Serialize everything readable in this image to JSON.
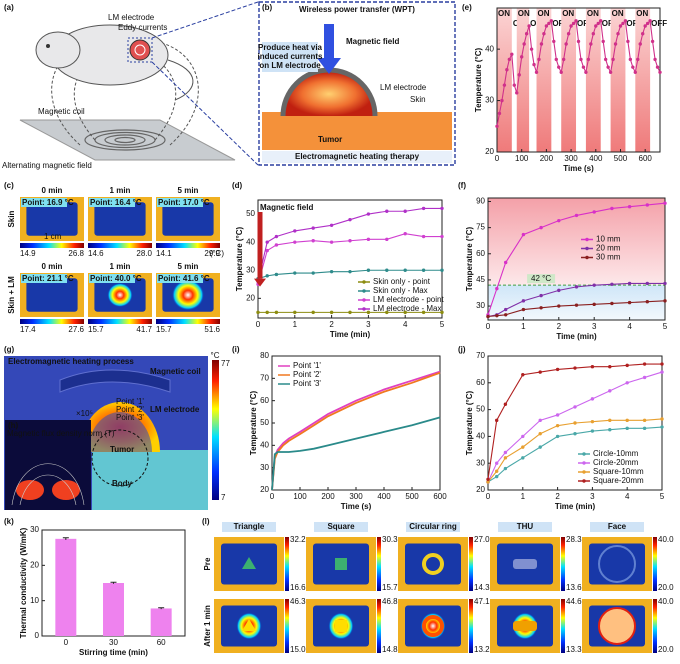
{
  "panel_labels": [
    "(a)",
    "(b)",
    "(c)",
    "(d)",
    "(e)",
    "(f)",
    "(g)",
    "(h)",
    "(i)",
    "(j)",
    "(k)",
    "(l)"
  ],
  "a": {
    "labels": [
      "LM electrode",
      "Eddy currents",
      "Magnetic coil",
      "Alternating magnetic field"
    ]
  },
  "b": {
    "title": "Wireless power transfer (WPT)",
    "heat_note": [
      "Produce heat via",
      "induced currents",
      "on LM electrode"
    ],
    "field": "Magnetic field",
    "electrode": "LM electrode",
    "skin": "Skin",
    "tumor": "Tumor",
    "caption": "Electromagnetic heating therapy"
  },
  "c": {
    "rows": [
      "Skin",
      "Skin + LM"
    ],
    "times": [
      "0 min",
      "1 min",
      "5 min"
    ],
    "points": [
      [
        "Point: 16.9 °C",
        "Point: 16.4 °C",
        "Point: 17.0 °C"
      ],
      [
        "Point: 21.1 °C",
        "Point: 40.0 °C",
        "Point: 41.6 °C"
      ]
    ],
    "scale": [
      [
        [
          "14.9",
          "26.8"
        ],
        [
          "14.6",
          "28.0"
        ],
        [
          "14.1",
          "29.9"
        ]
      ],
      [
        [
          "17.4",
          "27.6"
        ],
        [
          "15.7",
          "41.7"
        ],
        [
          "15.7",
          "51.6"
        ]
      ]
    ],
    "unit": "(°C)",
    "scalebar": "1 cm"
  },
  "g": {
    "title": "Electromagnetic heating process",
    "coil": "Magnetic coil",
    "electrode": "LM electrode",
    "points": [
      "Point '1'",
      "Point '2'",
      "Point '3'"
    ],
    "tumor": "Tumor",
    "body": "Body",
    "unit": "°C",
    "max": "77",
    "min": "7",
    "exponent": "×10⁵"
  },
  "h": {
    "title": "Magnetic flux density norm (T)"
  },
  "l": {
    "shapes": [
      "Triangle",
      "Square",
      "Circular ring",
      "THU",
      "Face"
    ],
    "rows": [
      "Pre",
      "After 1 min"
    ],
    "scale": [
      [
        [
          "32.2",
          "16.6"
        ],
        [
          "30.3",
          "15.7"
        ],
        [
          "27.0",
          "14.3"
        ],
        [
          "28.3",
          "13.6"
        ],
        [
          "40.0",
          "20.0"
        ]
      ],
      [
        [
          "46.3",
          "15.0"
        ],
        [
          "46.8",
          "14.8"
        ],
        [
          "47.1",
          "13.2"
        ],
        [
          "44.6",
          "13.3"
        ],
        [
          "40.0",
          "20.0"
        ]
      ]
    ]
  },
  "chart_data": [
    {
      "type": "line",
      "xlabel": "Time (s)",
      "ylabel": "Temperature (°C)",
      "color": "#d0308a",
      "x": [
        0,
        10,
        20,
        30,
        40,
        50,
        60,
        70,
        80,
        90,
        100,
        110,
        120,
        130,
        140,
        150,
        160,
        170,
        180,
        190,
        200,
        210,
        220,
        230,
        240,
        250,
        260,
        270,
        280,
        290,
        300,
        310,
        320,
        330,
        340,
        350,
        360,
        370,
        380,
        390,
        400,
        410,
        420,
        430,
        440,
        450,
        460,
        470,
        480,
        490,
        500,
        510,
        520,
        530,
        540,
        550,
        560,
        570,
        580,
        590,
        600,
        610,
        620,
        630,
        640,
        650,
        660
      ],
      "values": [
        25,
        27.5,
        30,
        33,
        36,
        38,
        39,
        33,
        31.5,
        35,
        38.5,
        41,
        43,
        44.5,
        40,
        37,
        35.5,
        38,
        41,
        43,
        44.5,
        45,
        45.5,
        41.5,
        38,
        36.5,
        35.5,
        38,
        41,
        43,
        44.5,
        45,
        45.5,
        41.5,
        38,
        36.5,
        35.5,
        38,
        41,
        43,
        44.5,
        45,
        45.5,
        41.5,
        38,
        36.5,
        35.5,
        38,
        41,
        43,
        44.5,
        45,
        45.5,
        41.5,
        38,
        36.5,
        35.5,
        38,
        41,
        43,
        44.5,
        45,
        45.5,
        41.5,
        38,
        36.5,
        35.5
      ],
      "on_intervals": [
        [
          0,
          60
        ],
        [
          80,
          130
        ],
        [
          160,
          220
        ],
        [
          260,
          320
        ],
        [
          360,
          420
        ],
        [
          460,
          520
        ],
        [
          560,
          620
        ]
      ],
      "annotations": [
        "ON",
        "OFF",
        "ON",
        "OFF",
        "ON",
        "OFF",
        "ON",
        "OFF",
        "ON",
        "OFF",
        "ON",
        "OFF",
        "ON",
        "OFF"
      ],
      "xlim": [
        0,
        660
      ],
      "xticks": [
        0,
        100,
        200,
        300,
        400,
        500,
        600
      ],
      "ylim": [
        20,
        48
      ],
      "yticks": [
        20,
        30,
        40
      ]
    },
    {
      "type": "line",
      "xlabel": "Time (min)",
      "ylabel": "Temperature (°C)",
      "annotation": "Magnetic field",
      "legend": "lower right",
      "x": [
        0,
        0.25,
        0.5,
        1,
        1.5,
        2,
        2.5,
        3,
        3.5,
        4,
        4.5,
        5
      ],
      "series": [
        {
          "name": "Skin only - point",
          "color": "#8c8c10",
          "values": [
            15,
            15,
            15,
            15,
            15,
            15,
            15,
            15,
            15,
            15,
            15,
            15
          ]
        },
        {
          "name": "Skin only - Max",
          "color": "#2e8b8b",
          "values": [
            27,
            28,
            28.5,
            29,
            29,
            29.5,
            29.5,
            30,
            30,
            30,
            30,
            30
          ]
        },
        {
          "name": "LM electrode - point",
          "color": "#d040d0",
          "values": [
            25,
            37,
            39,
            40,
            40.5,
            40,
            40.5,
            41,
            41,
            43,
            42,
            42
          ]
        },
        {
          "name": "LM electrode - Max",
          "color": "#b030c8",
          "values": [
            26,
            40,
            42,
            44,
            45,
            46,
            48,
            50,
            51,
            51,
            52,
            52
          ]
        }
      ],
      "xlim": [
        0,
        5
      ],
      "xticks": [
        0,
        1,
        2,
        3,
        4,
        5
      ],
      "ylim": [
        13,
        55
      ],
      "yticks": [
        20,
        30,
        40,
        50
      ]
    },
    {
      "type": "line",
      "xlabel": "Time (min)",
      "ylabel": "Temperature (°C)",
      "legend": "center right",
      "threshold": 42,
      "threshold_label": "42 °C",
      "x": [
        0,
        0.25,
        0.5,
        1,
        1.5,
        2,
        2.5,
        3,
        3.5,
        4,
        4.5,
        5
      ],
      "series": [
        {
          "name": "10 mm",
          "color": "#d830c8",
          "values": [
            25,
            40,
            55,
            71,
            75,
            79,
            82,
            84,
            86,
            87,
            88,
            89
          ]
        },
        {
          "name": "20 mm",
          "color": "#8030a8",
          "values": [
            24,
            25,
            28,
            33,
            36,
            39,
            41,
            42,
            42.5,
            43,
            43,
            43
          ]
        },
        {
          "name": "30 mm",
          "color": "#8a2020",
          "values": [
            24,
            24.5,
            25,
            28,
            29,
            30,
            30.5,
            31,
            31.5,
            32,
            32.5,
            33
          ]
        }
      ],
      "xlim": [
        0,
        5
      ],
      "xticks": [
        0,
        1,
        2,
        3,
        4,
        5
      ],
      "ylim": [
        22,
        92
      ],
      "yticks": [
        30,
        45,
        60,
        75,
        90
      ]
    },
    {
      "type": "line",
      "xlabel": "Time (s)",
      "ylabel": "Temperature (°C)",
      "legend": "upper left",
      "markers": false,
      "x": [
        0,
        10,
        20,
        40,
        60,
        100,
        150,
        200,
        300,
        400,
        500,
        600
      ],
      "series": [
        {
          "name": "Point '1'",
          "color": "#e040c0",
          "values": [
            20,
            35,
            38,
            41,
            43,
            46,
            50,
            54,
            60,
            65,
            69,
            73
          ]
        },
        {
          "name": "Point '2'",
          "color": "#f07820",
          "values": [
            20,
            34,
            37,
            40,
            42,
            45,
            49,
            53,
            59,
            64,
            68,
            72.5
          ]
        },
        {
          "name": "Point '3'",
          "color": "#2a8a8a",
          "values": [
            20,
            36,
            37,
            37,
            37,
            37.5,
            38.5,
            40,
            43,
            46,
            49,
            52.5
          ]
        }
      ],
      "xlim": [
        0,
        600
      ],
      "xticks": [
        0,
        100,
        200,
        300,
        400,
        500,
        600
      ],
      "ylim": [
        20,
        80
      ],
      "yticks": [
        20,
        30,
        40,
        50,
        60,
        70,
        80
      ]
    },
    {
      "type": "line",
      "xlabel": "Time (min)",
      "ylabel": "Temperature (°C)",
      "legend": "lower right",
      "x": [
        0,
        0.25,
        0.5,
        1,
        1.5,
        2,
        2.5,
        3,
        3.5,
        4,
        4.5,
        5
      ],
      "series": [
        {
          "name": "Circle-10mm",
          "color": "#4aa8a8",
          "values": [
            23,
            25,
            28,
            32,
            36,
            40,
            41,
            42,
            42.5,
            43,
            43,
            43.5
          ]
        },
        {
          "name": "Circle-20mm",
          "color": "#cc66ee",
          "values": [
            23,
            30,
            34,
            40,
            46,
            48,
            51,
            54,
            57,
            60,
            62,
            64
          ]
        },
        {
          "name": "Square-10mm",
          "color": "#e8a030",
          "values": [
            23,
            27,
            32,
            36,
            41,
            44,
            45,
            45.5,
            46,
            46,
            46,
            46.5
          ]
        },
        {
          "name": "Square-20mm",
          "color": "#b02020",
          "values": [
            24,
            46,
            52,
            63,
            64,
            65,
            65.5,
            66,
            66,
            66.5,
            67,
            67
          ]
        }
      ],
      "xlim": [
        0,
        5
      ],
      "xticks": [
        0,
        1,
        2,
        3,
        4,
        5
      ],
      "ylim": [
        20,
        70
      ],
      "yticks": [
        20,
        30,
        40,
        50,
        60,
        70
      ]
    },
    {
      "type": "bar",
      "xlabel": "Stirring time (min)",
      "ylabel": "Thermal conductivity (W/mK)",
      "categories": [
        "0",
        "30",
        "60"
      ],
      "values": [
        27.5,
        15,
        7.8
      ],
      "errors": [
        0.3,
        0.2,
        0.2
      ],
      "color": "#ee82ee",
      "ylim": [
        0,
        30
      ],
      "yticks": [
        0,
        10,
        20,
        30
      ]
    }
  ]
}
